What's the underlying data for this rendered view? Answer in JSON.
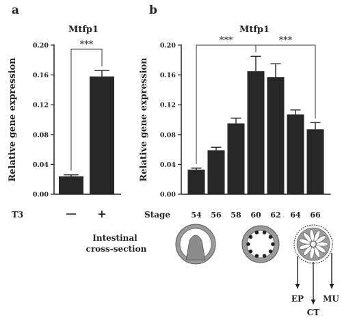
{
  "chart_data": [
    {
      "panel": "a",
      "type": "bar",
      "title": "Mtfp1",
      "ylabel": "Relative gene expression",
      "xlabel": "T3",
      "categories": [
        "—",
        "+"
      ],
      "values": [
        0.024,
        0.158
      ],
      "errors": [
        0.002,
        0.008
      ],
      "ylim": [
        0,
        0.2
      ],
      "yticks": [
        "0.00",
        "0.04",
        "0.08",
        "0.12",
        "0.16",
        "0.20"
      ],
      "significance": [
        {
          "from": 0,
          "to": 1,
          "label": "***"
        }
      ],
      "color": "#262626"
    },
    {
      "panel": "b",
      "type": "bar",
      "title": "Mtfp1",
      "ylabel": "Relative gene expression",
      "xlabel": "Stage",
      "categories": [
        "54",
        "56",
        "58",
        "60",
        "62",
        "64",
        "66"
      ],
      "values": [
        0.033,
        0.059,
        0.095,
        0.165,
        0.157,
        0.107,
        0.087
      ],
      "errors": [
        0.002,
        0.004,
        0.007,
        0.02,
        0.018,
        0.006,
        0.009
      ],
      "ylim": [
        0,
        0.2
      ],
      "yticks": [
        "0.00",
        "0.04",
        "0.08",
        "0.12",
        "0.16",
        "0.20"
      ],
      "significance": [
        {
          "from": 0,
          "to": 3,
          "label": "***"
        },
        {
          "from": 3,
          "to": 6,
          "label": "***"
        }
      ],
      "color": "#262626"
    }
  ],
  "diagram": {
    "label_line1": "Intestinal",
    "label_line2": "cross-section",
    "tissue_labels": [
      "EP",
      "CT",
      "MU"
    ]
  }
}
